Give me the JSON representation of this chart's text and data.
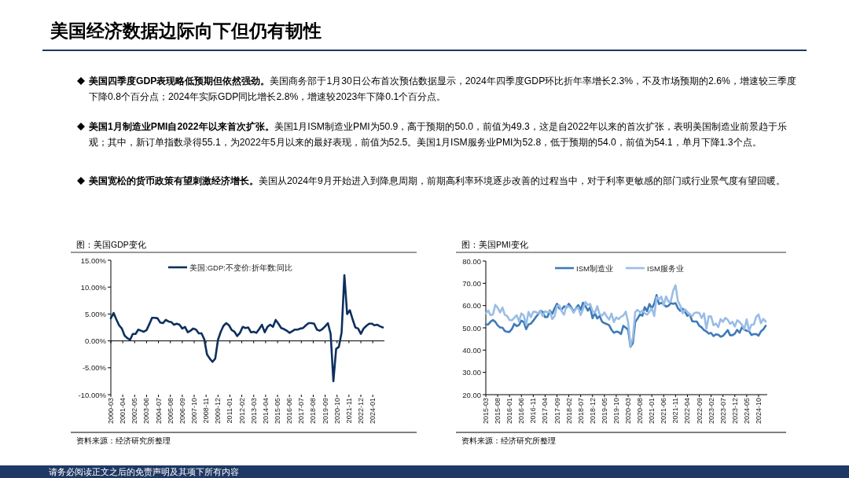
{
  "chart_data": [
    {
      "type": "other",
      "title": "美国经济数据边际向下但仍有韧性",
      "annotations": [
        "美国四季度GDP表现略低预期但依然强劲。美国商务部于1月30日公布首次预估数据显示，2024年四季度GDP环比折年率增长2.3%，不及市场预期的2.6%，增速较三季度下降0.8个百分点；2024年实际GDP同比增长2.8%，增速较2023年下降0.1个百分点。",
        "美国1月制造业PMI自2022年以来首次扩张。美国1月ISM制造业PMI为50.9，高于预期的50.0，前值为49.3，这是自2022年以来的首次扩张，表明美国制造业前景趋于乐观；其中，新订单指数录得55.1，为2022年5月以来的最好表现，前值为52.5。美国1月ISM服务业PMI为52.8，低于预期的54.0，前值为54.1，单月下降1.3个点。",
        "美国宽松的货币政策有望刺激经济增长。美国从2024年9月开始进入到降息周期，前期高利率环境逐步改善的过程当中，对于利率更敏感的部门或行业景气度有望回暖。",
        "请务必阅读正文之后的免责声明及其项下所有内容"
      ]
    },
    {
      "type": "line",
      "title": "图：美国GDP变化",
      "annotations": [
        "资料来源：经济研究所整理"
      ],
      "legend": "top",
      "grid": false,
      "ref_lines": [
        {
          "axis": "y",
          "value": 0
        }
      ],
      "marker": "none",
      "line_style": "solid",
      "xlim": [
        "2000-03",
        "2024-12"
      ],
      "xticks": [
        "2000-03",
        "2001-04",
        "2002-05",
        "2003-06",
        "2004-07",
        "2005-08",
        "2006-09",
        "2007-10",
        "2008-11",
        "2009-12",
        "2011-01",
        "2012-02",
        "2013-03",
        "2014-04",
        "2015-05",
        "2016-06",
        "2017-07",
        "2018-08",
        "2019-09",
        "2020-10",
        "2021-11",
        "2022-12",
        "2024-01"
      ],
      "ylim": [
        -10,
        15
      ],
      "yticks": [
        {
          "value": -10,
          "label": "-10.00%"
        },
        {
          "value": -5,
          "label": "-5.00%"
        },
        {
          "value": 0,
          "label": "0.00%"
        },
        {
          "value": 5,
          "label": "5.00%"
        },
        {
          "value": 10,
          "label": "10.00%"
        },
        {
          "value": 15,
          "label": "15.00%"
        }
      ],
      "x": [
        "2000-03",
        "2000-06",
        "2000-09",
        "2000-12",
        "2001-03",
        "2001-06",
        "2001-09",
        "2001-12",
        "2002-03",
        "2002-06",
        "2002-09",
        "2002-12",
        "2003-03",
        "2003-06",
        "2003-09",
        "2003-12",
        "2004-03",
        "2004-06",
        "2004-09",
        "2004-12",
        "2005-03",
        "2005-06",
        "2005-09",
        "2005-12",
        "2006-03",
        "2006-06",
        "2006-09",
        "2006-12",
        "2007-03",
        "2007-06",
        "2007-09",
        "2007-12",
        "2008-03",
        "2008-06",
        "2008-09",
        "2008-12",
        "2009-03",
        "2009-06",
        "2009-09",
        "2009-12",
        "2010-03",
        "2010-06",
        "2010-09",
        "2010-12",
        "2011-03",
        "2011-06",
        "2011-09",
        "2011-12",
        "2012-03",
        "2012-06",
        "2012-09",
        "2012-12",
        "2013-03",
        "2013-06",
        "2013-09",
        "2013-12",
        "2014-03",
        "2014-06",
        "2014-09",
        "2014-12",
        "2015-03",
        "2015-06",
        "2015-09",
        "2015-12",
        "2016-03",
        "2016-06",
        "2016-09",
        "2016-12",
        "2017-03",
        "2017-06",
        "2017-09",
        "2017-12",
        "2018-03",
        "2018-06",
        "2018-09",
        "2018-12",
        "2019-03",
        "2019-06",
        "2019-09",
        "2019-12",
        "2020-03",
        "2020-06",
        "2020-09",
        "2020-12",
        "2021-03",
        "2021-06",
        "2021-09",
        "2021-12",
        "2022-03",
        "2022-06",
        "2022-09",
        "2022-12",
        "2023-03",
        "2023-06",
        "2023-09",
        "2023-12",
        "2024-03",
        "2024-06",
        "2024-09",
        "2024-12"
      ],
      "series": [
        {
          "name": "美国:GDP:不变价:折年数:同比",
          "color": "#0d2f5e",
          "values": [
            4.2,
            5.2,
            4.0,
            2.9,
            2.3,
            1.0,
            0.5,
            0.2,
            1.3,
            1.3,
            2.1,
            1.9,
            1.7,
            2.0,
            3.1,
            4.3,
            4.3,
            4.2,
            3.4,
            3.3,
            3.9,
            3.6,
            3.5,
            3.0,
            3.2,
            3.0,
            2.3,
            2.6,
            1.6,
            1.9,
            2.3,
            2.1,
            1.4,
            1.4,
            0.3,
            -2.5,
            -3.3,
            -3.9,
            -3.3,
            0.2,
            1.7,
            2.8,
            3.3,
            2.9,
            2.0,
            1.7,
            0.9,
            1.5,
            2.6,
            2.4,
            2.5,
            1.6,
            1.7,
            1.5,
            2.2,
            3.0,
            1.6,
            2.6,
            3.0,
            2.6,
            3.9,
            3.2,
            2.4,
            2.2,
            1.9,
            1.5,
            1.8,
            2.1,
            2.1,
            2.3,
            2.4,
            2.9,
            3.3,
            3.3,
            3.2,
            2.1,
            1.9,
            2.2,
            2.7,
            3.3,
            1.3,
            -7.5,
            -1.5,
            -1.1,
            1.6,
            12.2,
            5.0,
            5.7,
            4.0,
            2.5,
            2.3,
            1.3,
            2.3,
            2.8,
            3.2,
            3.2,
            2.9,
            3.0,
            2.7,
            2.5
          ]
        }
      ]
    },
    {
      "type": "line",
      "title": "图：美国PMI变化",
      "annotations": [
        "资料来源：经济研究所整理"
      ],
      "legend": "top",
      "grid": false,
      "marker": "none",
      "line_style": "solid",
      "xlim": [
        "2015-03",
        "2025-01"
      ],
      "xticks": [
        "2015-03",
        "2015-08",
        "2016-01",
        "2016-06",
        "2016-11",
        "2017-04",
        "2017-09",
        "2018-02",
        "2018-07",
        "2018-12",
        "2019-05",
        "2019-10",
        "2020-03",
        "2020-08",
        "2021-01",
        "2021-06",
        "2021-11",
        "2022-04",
        "2022-09",
        "2023-02",
        "2023-07",
        "2023-12",
        "2024-05",
        "2024-10"
      ],
      "ylim": [
        20,
        80
      ],
      "yticks": [
        {
          "value": 20,
          "label": "20.00"
        },
        {
          "value": 30,
          "label": "30.00"
        },
        {
          "value": 40,
          "label": "40.00"
        },
        {
          "value": 50,
          "label": "50.00"
        },
        {
          "value": 60,
          "label": "60.00"
        },
        {
          "value": 70,
          "label": "70.00"
        },
        {
          "value": 80,
          "label": "80.00"
        }
      ],
      "x": [
        "2015-03",
        "2015-04",
        "2015-05",
        "2015-06",
        "2015-07",
        "2015-08",
        "2015-09",
        "2015-10",
        "2015-11",
        "2015-12",
        "2016-01",
        "2016-02",
        "2016-03",
        "2016-04",
        "2016-05",
        "2016-06",
        "2016-07",
        "2016-08",
        "2016-09",
        "2016-10",
        "2016-11",
        "2016-12",
        "2017-01",
        "2017-02",
        "2017-03",
        "2017-04",
        "2017-05",
        "2017-06",
        "2017-07",
        "2017-08",
        "2017-09",
        "2017-10",
        "2017-11",
        "2017-12",
        "2018-01",
        "2018-02",
        "2018-03",
        "2018-04",
        "2018-05",
        "2018-06",
        "2018-07",
        "2018-08",
        "2018-09",
        "2018-10",
        "2018-11",
        "2018-12",
        "2019-01",
        "2019-02",
        "2019-03",
        "2019-04",
        "2019-05",
        "2019-06",
        "2019-07",
        "2019-08",
        "2019-09",
        "2019-10",
        "2019-11",
        "2019-12",
        "2020-01",
        "2020-02",
        "2020-03",
        "2020-04",
        "2020-05",
        "2020-06",
        "2020-07",
        "2020-08",
        "2020-09",
        "2020-10",
        "2020-11",
        "2020-12",
        "2021-01",
        "2021-02",
        "2021-03",
        "2021-04",
        "2021-05",
        "2021-06",
        "2021-07",
        "2021-08",
        "2021-09",
        "2021-10",
        "2021-11",
        "2021-12",
        "2022-01",
        "2022-02",
        "2022-03",
        "2022-04",
        "2022-05",
        "2022-06",
        "2022-07",
        "2022-08",
        "2022-09",
        "2022-10",
        "2022-11",
        "2022-12",
        "2023-01",
        "2023-02",
        "2023-03",
        "2023-04",
        "2023-05",
        "2023-06",
        "2023-07",
        "2023-08",
        "2023-09",
        "2023-10",
        "2023-11",
        "2023-12",
        "2024-01",
        "2024-02",
        "2024-03",
        "2024-04",
        "2024-05",
        "2024-06",
        "2024-07",
        "2024-08",
        "2024-09",
        "2024-10",
        "2024-11",
        "2024-12",
        "2025-01"
      ],
      "series": [
        {
          "name": "ISM制造业",
          "color": "#3e7ab8",
          "values": [
            51.5,
            51.5,
            52.8,
            53.5,
            52.7,
            51.1,
            50.2,
            50.1,
            48.6,
            48.2,
            48.2,
            49.5,
            51.8,
            50.8,
            51.3,
            53.2,
            52.6,
            49.4,
            51.5,
            51.9,
            53.2,
            54.7,
            56.0,
            57.7,
            57.2,
            54.8,
            54.9,
            57.8,
            56.3,
            58.8,
            60.8,
            58.7,
            58.2,
            59.7,
            59.1,
            60.8,
            59.3,
            57.3,
            58.7,
            60.2,
            58.1,
            61.3,
            59.8,
            57.7,
            59.3,
            54.3,
            56.6,
            54.2,
            55.3,
            52.8,
            52.1,
            51.7,
            51.2,
            49.1,
            47.8,
            48.3,
            48.1,
            47.2,
            50.9,
            50.1,
            49.1,
            41.5,
            43.1,
            52.6,
            54.2,
            56.0,
            55.4,
            59.3,
            57.5,
            60.7,
            58.7,
            60.8,
            64.7,
            60.7,
            61.2,
            60.6,
            59.5,
            59.9,
            61.1,
            60.8,
            61.1,
            58.8,
            57.6,
            58.6,
            57.1,
            55.4,
            56.1,
            53.0,
            52.8,
            52.8,
            50.9,
            50.2,
            49.0,
            48.4,
            47.4,
            47.7,
            46.3,
            47.1,
            46.9,
            46.0,
            46.4,
            47.6,
            49.0,
            46.7,
            46.7,
            47.4,
            49.1,
            47.8,
            50.3,
            49.2,
            48.7,
            48.5,
            46.8,
            47.2,
            47.2,
            46.5,
            48.4,
            49.3,
            50.9
          ]
        },
        {
          "name": "ISM服务业",
          "color": "#99bde6",
          "values": [
            56.5,
            57.8,
            55.7,
            56.0,
            60.3,
            59.0,
            56.9,
            59.1,
            55.9,
            55.3,
            53.5,
            53.4,
            54.5,
            55.7,
            52.9,
            56.5,
            55.5,
            51.4,
            57.1,
            54.8,
            57.2,
            57.2,
            56.5,
            57.6,
            55.2,
            57.5,
            56.9,
            57.4,
            53.9,
            55.3,
            59.8,
            60.1,
            57.4,
            55.9,
            59.9,
            59.5,
            58.8,
            56.8,
            58.6,
            59.1,
            55.7,
            58.5,
            61.6,
            60.3,
            60.7,
            57.6,
            56.7,
            59.7,
            56.1,
            55.5,
            56.9,
            55.1,
            53.7,
            56.4,
            52.6,
            54.7,
            53.9,
            55.0,
            55.5,
            57.3,
            52.5,
            41.8,
            45.4,
            57.1,
            58.1,
            56.9,
            57.8,
            56.6,
            55.9,
            57.2,
            58.7,
            55.3,
            63.7,
            62.7,
            64.0,
            60.1,
            64.1,
            61.7,
            61.9,
            66.7,
            69.1,
            62.0,
            59.9,
            56.5,
            58.3,
            57.1,
            55.9,
            55.3,
            56.7,
            56.9,
            56.7,
            54.4,
            56.5,
            49.6,
            55.2,
            55.1,
            51.2,
            51.9,
            50.3,
            53.9,
            52.7,
            54.5,
            53.6,
            51.8,
            52.7,
            50.6,
            53.4,
            52.6,
            51.4,
            49.4,
            53.8,
            48.8,
            51.4,
            51.5,
            54.9,
            56.0,
            52.1,
            54.0,
            52.8
          ]
        }
      ]
    }
  ]
}
